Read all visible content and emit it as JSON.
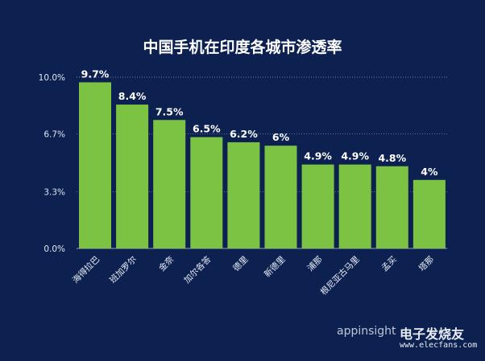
{
  "chart_data": {
    "type": "bar",
    "title": "中国手机在印度各城市渗透率",
    "xlabel": "",
    "ylabel": "",
    "ylim": [
      0,
      10
    ],
    "yticks": [
      0,
      3.3,
      6.7,
      10
    ],
    "ytick_labels": [
      "0.0%",
      "3.3%",
      "6.7%",
      "10.0%"
    ],
    "grid": true,
    "categories": [
      "海得拉巴",
      "班加罗尔",
      "金奈",
      "加尔各答",
      "德里",
      "新德里",
      "浦那",
      "根尼亚古马里",
      "孟买",
      "塔那"
    ],
    "values": [
      9.7,
      8.4,
      7.5,
      6.5,
      6.2,
      6,
      4.9,
      4.9,
      4.8,
      4
    ],
    "data_labels": [
      "9.7%",
      "8.4%",
      "7.5%",
      "6.5%",
      "6.2%",
      "6%",
      "4.9%",
      "4.9%",
      "4.8%",
      "4%"
    ],
    "colors": {
      "bar": "#7cc243",
      "background": "#0d2150",
      "text": "#ffffff"
    }
  },
  "watermark": {
    "brand": "appinsight",
    "site_name": "电子发烧友",
    "url": "www.elecfans.com"
  }
}
